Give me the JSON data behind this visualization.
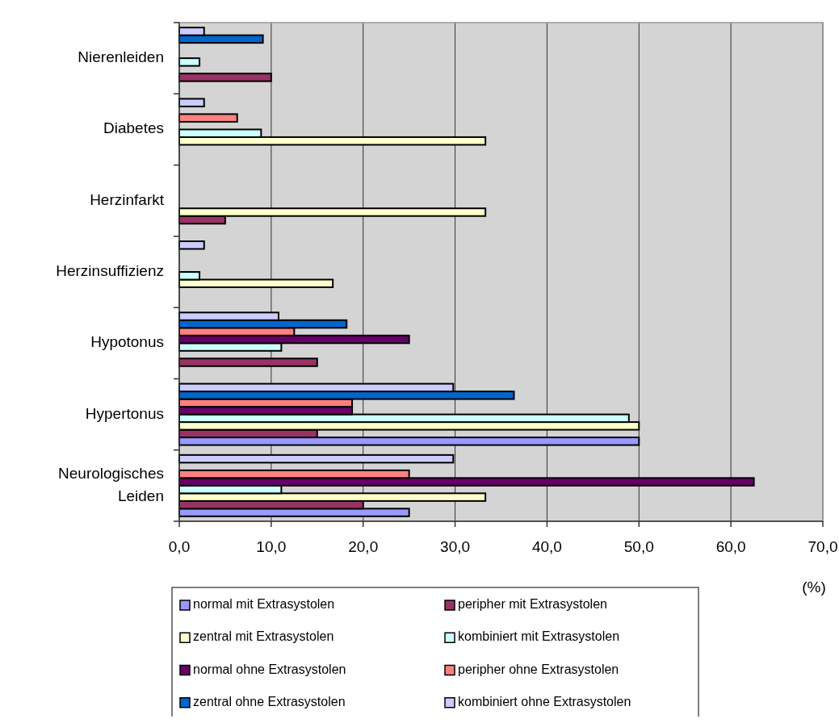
{
  "chart_data": {
    "type": "bar",
    "orientation": "horizontal",
    "xlabel": "(%)",
    "categories": [
      "Nierenleiden",
      "Diabetes",
      "Herzinfarkt",
      "Herzinsuffizienz",
      "Hypotonus",
      "Hypertonus",
      "Neurologisches Leiden"
    ],
    "series": [
      {
        "name": "normal mit Extrasystolen",
        "color": "#9999ff",
        "values": [
          null,
          null,
          null,
          null,
          null,
          50.0,
          25.0
        ]
      },
      {
        "name": "peripher mit Extrasystolen",
        "color": "#993366",
        "values": [
          10.0,
          null,
          5.0,
          null,
          15.0,
          15.0,
          20.0
        ]
      },
      {
        "name": "zentral mit Extrasystolen",
        "color": "#ffffcc",
        "values": [
          null,
          33.3,
          33.3,
          16.7,
          null,
          50.0,
          33.3
        ]
      },
      {
        "name": "kombiniert mit Extrasystolen",
        "color": "#ccffff",
        "values": [
          2.2,
          8.9,
          null,
          2.2,
          11.1,
          48.9,
          11.1
        ]
      },
      {
        "name": "normal ohne Extrasystolen",
        "color": "#660066",
        "values": [
          null,
          null,
          null,
          null,
          25.0,
          18.8,
          62.5
        ]
      },
      {
        "name": "peripher ohne Extrasystolen",
        "color": "#ff8080",
        "values": [
          null,
          6.3,
          null,
          null,
          12.5,
          18.8,
          25.0
        ]
      },
      {
        "name": "zentral ohne Extrasystolen",
        "color": "#0066cc",
        "values": [
          9.1,
          null,
          null,
          null,
          18.2,
          36.4,
          null
        ]
      },
      {
        "name": "kombiniert ohne Extrasystolen",
        "color": "#ccccff",
        "values": [
          2.7,
          2.7,
          null,
          2.7,
          10.8,
          29.8,
          29.8
        ]
      }
    ],
    "xlim": [
      0,
      70
    ],
    "xticks": [
      {
        "value": 0,
        "label": "0,0"
      },
      {
        "value": 10,
        "label": "10,0"
      },
      {
        "value": 20,
        "label": "20,0"
      },
      {
        "value": 30,
        "label": "30,0"
      },
      {
        "value": 40,
        "label": "40,0"
      },
      {
        "value": 50,
        "label": "50,0"
      },
      {
        "value": 60,
        "label": "60,0"
      },
      {
        "value": 70,
        "label": "70,0"
      }
    ],
    "grid": "x",
    "legend": "bottom"
  }
}
